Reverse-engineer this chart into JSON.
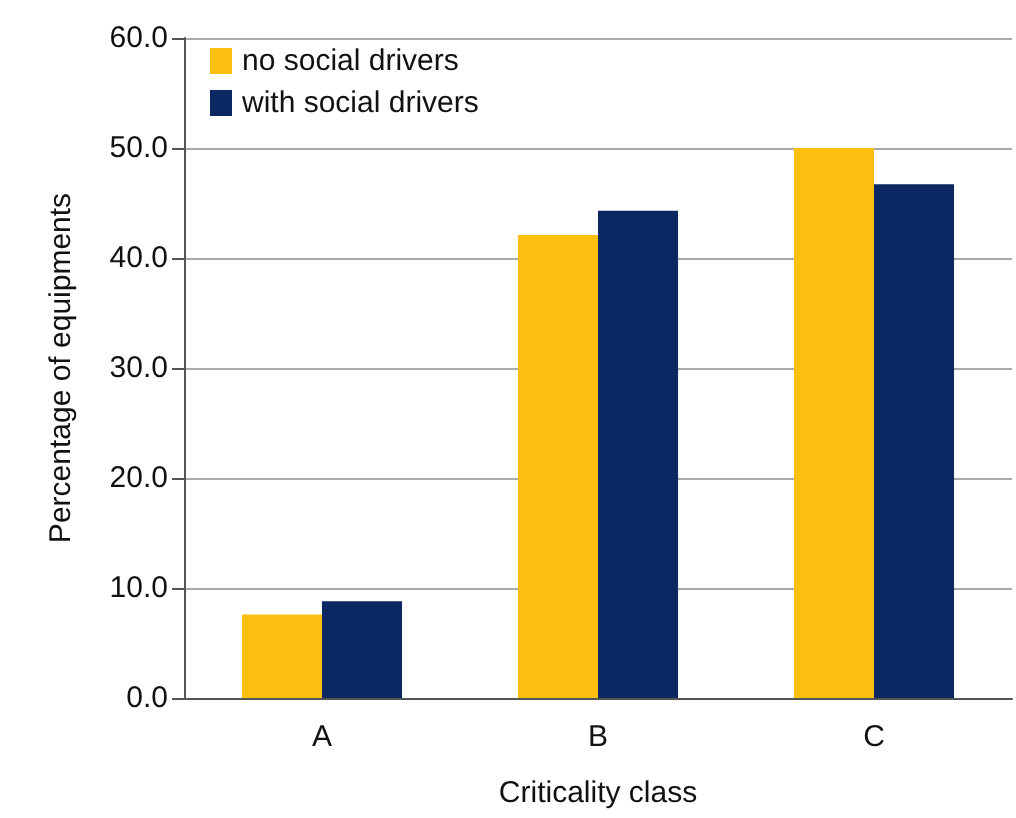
{
  "chart_data": {
    "type": "bar",
    "xlabel": "Criticality class",
    "ylabel": "Percentage of equipments",
    "categories": [
      "A",
      "B",
      "C"
    ],
    "series": [
      {
        "name": "no social drivers",
        "color": "#fdbf0f",
        "values": [
          7.6,
          42.1,
          50.0
        ]
      },
      {
        "name": "with social drivers",
        "color": "#0b2862",
        "values": [
          8.8,
          44.3,
          46.7
        ]
      }
    ],
    "ylim": [
      0,
      60
    ],
    "yticks": [
      {
        "value": 0,
        "label": "0.0"
      },
      {
        "value": 10,
        "label": "10.0"
      },
      {
        "value": 20,
        "label": "20.0"
      },
      {
        "value": 30,
        "label": "30.0"
      },
      {
        "value": 40,
        "label": "40.0"
      },
      {
        "value": 50,
        "label": "50.0"
      },
      {
        "value": 60,
        "label": "60.0"
      }
    ],
    "grid": "y",
    "legend": "top left"
  }
}
